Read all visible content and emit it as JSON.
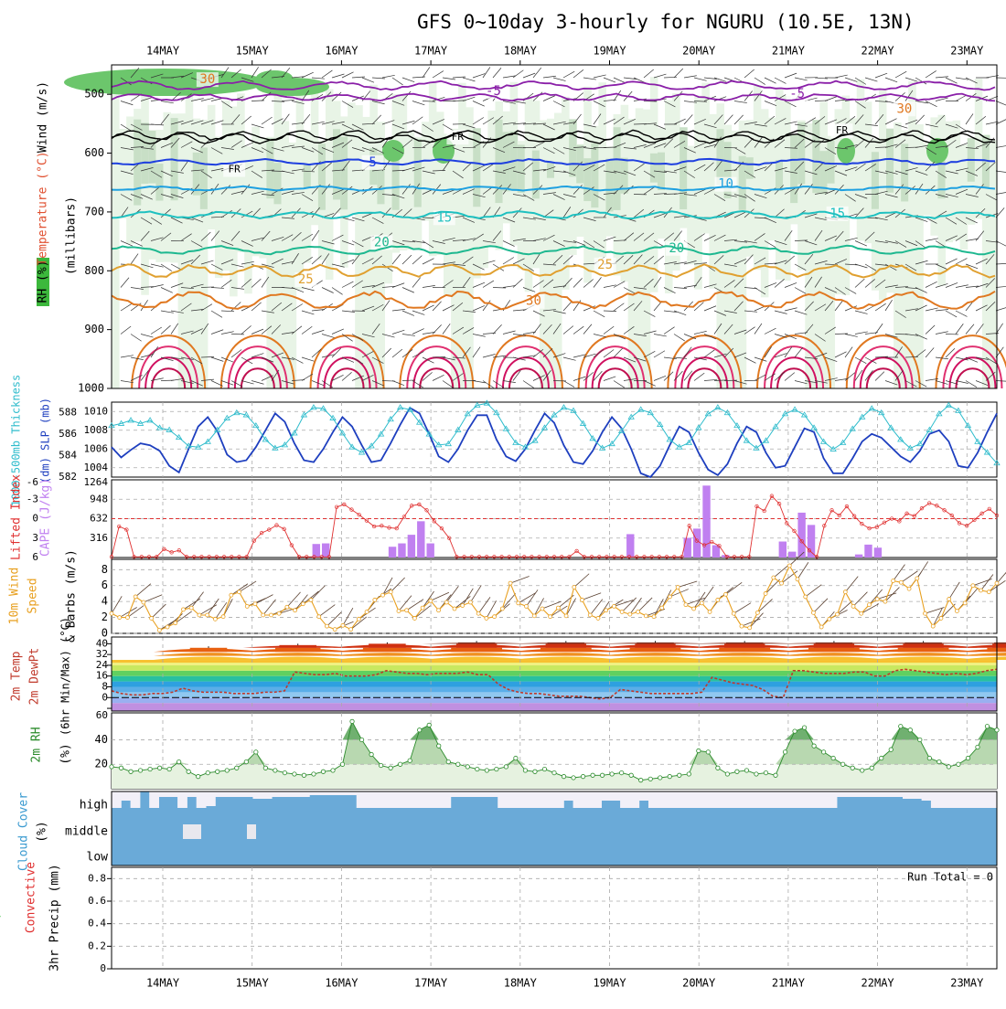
{
  "title": "GFS 0~10day 3-hourly for NGURU (10.5E, 13N)",
  "dates": [
    "14MAY",
    "15MAY",
    "16MAY",
    "17MAY",
    "18MAY",
    "19MAY",
    "20MAY",
    "21MAY",
    "22MAY",
    "23MAY"
  ],
  "colors": {
    "slp": "#1e3fbf",
    "thickness": "#2fbccc",
    "lifted": "#e03030",
    "cape": "#c080f0",
    "wind10": "#e8a020",
    "dewpt": "#c0392b",
    "rh": "#2a8a2a",
    "cloud": "#6aaad8",
    "cloud_clear": "#f2f0f8"
  },
  "chart_data": [
    {
      "type": "line",
      "name": "upper-air",
      "ylabel_parts": {
        "rh": "RH (%)",
        "temp": "Temperature (°C)",
        "wind": "Wind (m/s)",
        "mb": "(millibars)"
      },
      "yticks": [
        500,
        600,
        700,
        800,
        900,
        1000
      ],
      "ylim": [
        450,
        1000
      ],
      "isotherm_labels": [
        {
          "text": "-5",
          "x": 3.7,
          "p": 495
        },
        {
          "text": "-5",
          "x": 7.1,
          "p": 500
        },
        {
          "text": "FR",
          "x": 3.3,
          "p": 573
        },
        {
          "text": "FR",
          "x": 7.6,
          "p": 562
        },
        {
          "text": "FR",
          "x": 0.8,
          "p": 628
        },
        {
          "text": "5",
          "x": 2.35,
          "p": 616
        },
        {
          "text": "10",
          "x": 6.3,
          "p": 653
        },
        {
          "text": "15",
          "x": 3.15,
          "p": 710
        },
        {
          "text": "15",
          "x": 7.55,
          "p": 703
        },
        {
          "text": "20",
          "x": 2.45,
          "p": 752
        },
        {
          "text": "20",
          "x": 5.75,
          "p": 762
        },
        {
          "text": "25",
          "x": 1.6,
          "p": 815
        },
        {
          "text": "25",
          "x": 4.95,
          "p": 790
        },
        {
          "text": "30",
          "x": 4.15,
          "p": 852
        },
        {
          "text": "30",
          "x": 8.3,
          "p": 525
        },
        {
          "text": "30",
          "x": 0.5,
          "p": 475
        }
      ]
    },
    {
      "type": "line",
      "name": "pressure",
      "ylabel": "1000-500mb Thickness (dm) SLP (mb)",
      "thickness_ticks": [
        582,
        584,
        586,
        588
      ],
      "slp_ticks": [
        1004,
        1006,
        1008,
        1010
      ],
      "slp_ylim": [
        1003,
        1011
      ],
      "thick_ylim": [
        582,
        589
      ],
      "slp": [
        1006.2,
        1005.1,
        1005.9,
        1006.6,
        1006.4,
        1005.8,
        1004.2,
        1003.5,
        1006.0,
        1008.4,
        1009.4,
        1007.9,
        1005.4,
        1004.6,
        1004.8,
        1006.2,
        1008.0,
        1009.8,
        1008.9,
        1006.6,
        1004.8,
        1004.6,
        1006.0,
        1007.8,
        1009.4,
        1008.4,
        1006.4,
        1004.6,
        1004.8,
        1006.6,
        1008.6,
        1010.4,
        1009.8,
        1007.6,
        1005.2,
        1004.6,
        1006.0,
        1008.0,
        1009.6,
        1009.6,
        1007.0,
        1005.2,
        1004.7,
        1006.0,
        1008.0,
        1009.8,
        1008.8,
        1006.4,
        1004.6,
        1004.4,
        1005.8,
        1007.8,
        1009.4,
        1008.2,
        1006.0,
        1003.4,
        1003.0,
        1004.2,
        1006.4,
        1008.4,
        1007.8,
        1005.6,
        1003.8,
        1003.2,
        1004.4,
        1006.6,
        1008.4,
        1007.8,
        1005.6,
        1004.0,
        1004.2,
        1006.2,
        1008.2,
        1007.8,
        1005.0,
        1003.4,
        1003.4,
        1005.0,
        1006.8,
        1007.6,
        1007.2,
        1006.2,
        1005.2,
        1004.6,
        1005.8,
        1007.6,
        1008.0,
        1006.8,
        1004.2,
        1004.0,
        1005.6,
        1007.8,
        1009.8
      ],
      "thickness": [
        586.8,
        587.0,
        587.3,
        587.0,
        587.3,
        586.6,
        586.4,
        585.7,
        584.9,
        584.8,
        585.3,
        586.4,
        587.5,
        588.0,
        587.8,
        586.8,
        585.5,
        584.7,
        585.0,
        586.1,
        587.8,
        588.5,
        588.4,
        587.5,
        586.1,
        584.8,
        584.3,
        584.9,
        586.0,
        587.4,
        588.5,
        588.3,
        587.1,
        586.0,
        585.0,
        585.1,
        586.4,
        587.9,
        588.7,
        588.9,
        588.0,
        586.5,
        585.2,
        584.8,
        585.4,
        586.6,
        587.8,
        588.5,
        588.2,
        587.0,
        585.6,
        584.7,
        585.1,
        586.3,
        587.6,
        588.3,
        588.0,
        586.9,
        585.5,
        584.8,
        585.2,
        586.6,
        587.9,
        588.5,
        588.0,
        586.8,
        585.4,
        584.7,
        585.4,
        586.7,
        587.9,
        588.3,
        587.8,
        586.6,
        585.3,
        584.6,
        585.2,
        586.5,
        587.6,
        588.4,
        588.0,
        586.6,
        585.5,
        584.7,
        585.1,
        586.4,
        587.9,
        588.7,
        588.2,
        586.8,
        585.3,
        584.3,
        583.3
      ]
    },
    {
      "type": "bar",
      "name": "instability",
      "ylabel_parts": {
        "li": "Lifted Index",
        "cape": "CAPE (J/kg)"
      },
      "li_ticks": [
        -3,
        0,
        3,
        6
      ],
      "li_top_tick": "-6",
      "li_ylim": [
        6,
        -6
      ],
      "cape_ticks": [
        316,
        632,
        948
      ],
      "cape_top_tick": "1264",
      "cape_ylim": [
        0,
        1264
      ],
      "lifted_index": [
        6.0,
        1.2,
        1.7,
        6.0,
        6.0,
        6.0,
        6.0,
        4.7,
        5.2,
        4.9,
        6.0,
        6.0,
        6.0,
        6.0,
        6.0,
        6.0,
        6.0,
        6.0,
        6.0,
        3.4,
        2.2,
        1.7,
        1.0,
        1.6,
        4.1,
        6.0,
        6.0,
        6.0,
        6.0,
        6.0,
        -1.8,
        -2.2,
        -1.4,
        -0.6,
        0.3,
        1.2,
        1.1,
        1.4,
        1.5,
        -0.3,
        -2.0,
        -2.2,
        -1.3,
        0.4,
        1.5,
        3.0,
        6.0,
        6.0,
        6.0,
        6.0,
        6.0,
        6.0,
        6.0,
        6.0,
        6.0,
        6.0,
        6.0,
        6.0,
        6.0,
        6.0,
        6.0,
        6.0,
        5.0,
        6.0,
        6.0,
        6.0,
        6.0,
        6.0,
        6.0,
        6.0,
        6.0,
        6.0,
        6.0,
        6.0,
        6.0,
        6.0,
        6.0,
        1.1,
        3.4,
        4.1,
        3.6,
        4.2,
        6.0,
        6.0,
        6.0,
        6.0,
        -1.9,
        -1.2,
        -3.5,
        -2.3,
        0.7,
        1.9,
        3.5,
        4.9,
        6.0,
        1.1,
        -1.3,
        -0.5,
        -1.9,
        -0.4,
        0.8,
        1.5,
        1.3,
        0.6,
        0.0,
        0.4,
        -0.8,
        -0.4,
        -1.6,
        -2.4,
        -2.0,
        -1.3,
        -0.5,
        0.7,
        1.1,
        0.2,
        -0.8,
        -1.5,
        -0.5
      ],
      "cape_bars": [
        {
          "i": 21,
          "v": 220
        },
        {
          "i": 22,
          "v": 230
        },
        {
          "i": 29,
          "v": 175
        },
        {
          "i": 30,
          "v": 230
        },
        {
          "i": 31,
          "v": 370
        },
        {
          "i": 32,
          "v": 590
        },
        {
          "i": 33,
          "v": 230
        },
        {
          "i": 54,
          "v": 380
        },
        {
          "i": 60,
          "v": 320
        },
        {
          "i": 61,
          "v": 470
        },
        {
          "i": 62,
          "v": 1170
        },
        {
          "i": 63,
          "v": 200
        },
        {
          "i": 64,
          "v": 40
        },
        {
          "i": 70,
          "v": 260
        },
        {
          "i": 71,
          "v": 95
        },
        {
          "i": 72,
          "v": 730
        },
        {
          "i": 73,
          "v": 530
        },
        {
          "i": 78,
          "v": 50
        },
        {
          "i": 79,
          "v": 210
        },
        {
          "i": 80,
          "v": 160
        }
      ]
    },
    {
      "type": "line",
      "name": "wind10m",
      "ylabel": "10m Wind Speed & Barbs (m/s)",
      "yticks": [
        0,
        2,
        4,
        6,
        8
      ],
      "ylim": [
        0,
        9.3
      ],
      "speed": [
        2.5,
        2.0,
        2.0,
        4.6,
        3.9,
        1.9,
        0.4,
        0.8,
        1.3,
        3.0,
        3.2,
        2.3,
        2.3,
        1.8,
        2.1,
        4.8,
        5.2,
        3.4,
        3.7,
        2.3,
        2.3,
        2.5,
        3.3,
        2.9,
        3.7,
        4.2,
        2.1,
        0.9,
        0.5,
        1.0,
        0.5,
        1.8,
        2.7,
        4.2,
        4.8,
        5.2,
        2.8,
        2.9,
        1.9,
        3.2,
        4.1,
        2.9,
        3.9,
        3.1,
        3.5,
        3.9,
        2.5,
        1.9,
        2.1,
        3.1,
        6.3,
        3.8,
        3.4,
        2.2,
        3.1,
        2.1,
        3.2,
        2.2,
        5.8,
        4.2,
        2.3,
        1.9,
        2.9,
        3.4,
        2.7,
        2.4,
        2.7,
        2.2,
        2.1,
        3.2,
        4.6,
        5.8,
        3.6,
        3.1,
        3.8,
        2.7,
        4.2,
        4.9,
        2.5,
        0.9,
        0.7,
        2.6,
        5.0,
        7.0,
        6.3,
        8.5,
        6.8,
        4.6,
        2.6,
        0.8,
        1.8,
        2.4,
        5.2,
        3.4,
        2.5,
        3.6,
        4.3,
        4.0,
        6.6,
        6.4,
        5.6,
        6.9,
        2.5,
        0.9,
        1.9,
        4.3,
        2.8,
        3.8,
        6.0,
        5.4,
        5.2,
        6.3
      ]
    },
    {
      "type": "area",
      "name": "temperature",
      "ylabel_parts": {
        "t": "2m Temp",
        "d": "2m DewPt",
        "m": "(6hr Min/Max) (°C)"
      },
      "yticks": [
        -8,
        0,
        8,
        16,
        24,
        32,
        40
      ],
      "tick_labels": [
        "",
        "0",
        "8",
        "16",
        "24",
        "32",
        "40"
      ],
      "ylim": [
        -10,
        45
      ],
      "temp_max_days": [
        37,
        39,
        40,
        41,
        41,
        41,
        41,
        41,
        41,
        41
      ],
      "temp_min": 27,
      "dewpt": [
        5,
        3,
        2,
        2,
        3,
        3,
        4,
        7,
        5,
        4,
        4,
        4,
        3,
        3,
        3,
        4,
        4,
        5,
        19,
        18,
        17,
        17,
        18,
        16,
        16,
        16,
        17,
        20,
        19,
        18,
        18,
        17,
        18,
        18,
        18,
        19,
        17,
        17,
        10,
        6,
        4,
        3,
        3,
        2,
        1,
        1,
        1,
        0,
        -1,
        0,
        6,
        5,
        4,
        3,
        3,
        3,
        3,
        3,
        4,
        15,
        13,
        11,
        10,
        9,
        6,
        1,
        0,
        20,
        20,
        19,
        18,
        18,
        18,
        19,
        19,
        16,
        16,
        20,
        21,
        20,
        19,
        18,
        17,
        18,
        17,
        18,
        20,
        21
      ]
    },
    {
      "type": "area",
      "name": "rh2m",
      "ylabel": "2m RH (%)",
      "yticks": [
        20,
        40
      ],
      "top_tick": "60",
      "ylim": [
        0,
        62
      ],
      "rh": [
        18,
        17,
        14,
        15,
        16,
        17,
        16,
        22,
        14,
        10,
        13,
        14,
        15,
        17,
        22,
        30,
        17,
        15,
        13,
        12,
        11,
        12,
        14,
        15,
        20,
        55,
        40,
        28,
        19,
        17,
        20,
        23,
        48,
        52,
        35,
        22,
        20,
        18,
        16,
        15,
        16,
        18,
        25,
        15,
        14,
        16,
        13,
        10,
        9,
        10,
        11,
        11,
        12,
        13,
        11,
        7,
        8,
        9,
        10,
        11,
        12,
        31,
        30,
        17,
        12,
        14,
        15,
        12,
        13,
        11,
        30,
        47,
        50,
        35,
        30,
        25,
        20,
        17,
        15,
        17,
        25,
        32,
        51,
        48,
        40,
        25,
        22,
        18,
        20,
        25,
        34,
        51,
        48
      ]
    },
    {
      "type": "heatmap",
      "name": "cloud",
      "ylabel": "Cloud Cover (%)",
      "levels": [
        "high",
        "middle",
        "low"
      ],
      "high_gap_ends": [
        9,
        5,
        9,
        0,
        9,
        3,
        3,
        9,
        3,
        9,
        8,
        3,
        3,
        3,
        3,
        4,
        4,
        3,
        3,
        3,
        3,
        2,
        2,
        2,
        2,
        2,
        9,
        9,
        9,
        9,
        9,
        9,
        9,
        9,
        9,
        9,
        3,
        3,
        3,
        3,
        3,
        9,
        9,
        9,
        9,
        9,
        9,
        9,
        5,
        9,
        9,
        9,
        5,
        5,
        9,
        9,
        5,
        9,
        9,
        9,
        9,
        9,
        9,
        9,
        9,
        9,
        9,
        9,
        9,
        9,
        9,
        9,
        9,
        9,
        9,
        9,
        9,
        3,
        3,
        3,
        3,
        3,
        3,
        3,
        4,
        4,
        5,
        9,
        9,
        9,
        9,
        9,
        9,
        9
      ],
      "middle_gaps": [
        [
          7,
          9
        ],
        [
          14,
          15
        ]
      ]
    },
    {
      "type": "bar",
      "name": "precip",
      "ylabel_parts": {
        "a": "Total / Rain",
        "b": "Convective",
        "c": "3hr Precip (mm)"
      },
      "yticks": [
        0,
        0.2,
        0.4,
        0.6,
        0.8
      ],
      "tick_labels": [
        "0",
        "0.2",
        "0.4",
        "0.6",
        "0.8"
      ],
      "ylim": [
        0,
        0.9
      ],
      "run_total_label": "Run Total = 0",
      "values": []
    }
  ]
}
